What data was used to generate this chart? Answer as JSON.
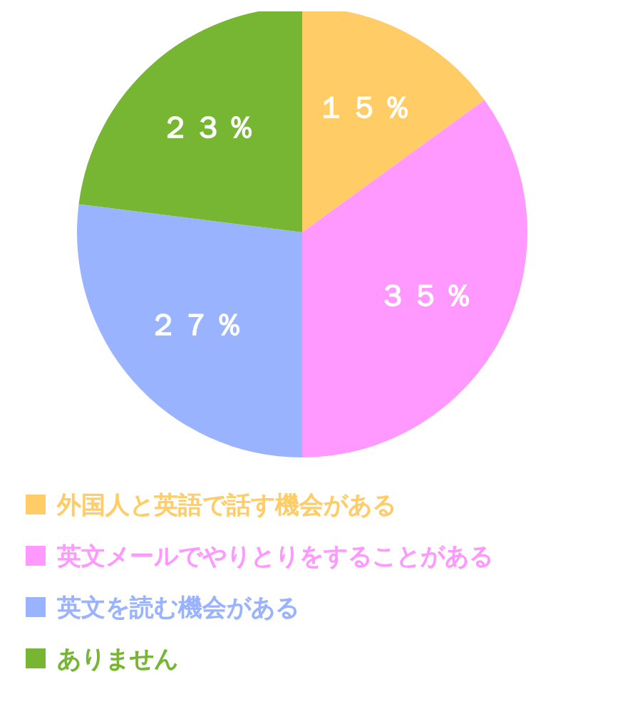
{
  "chart_data": {
    "type": "pie",
    "categories": [
      "外国人と英語で話す機会がある",
      "英文メールでやりとりをすることがある",
      "英文を読む機会がある",
      "ありません"
    ],
    "values": [
      15,
      35,
      27,
      23
    ],
    "colors": [
      "#ffcc66",
      "#ff99ff",
      "#99b3ff",
      "#77b633"
    ],
    "value_labels": [
      "１５％",
      "３５％",
      "２７％",
      "２３％"
    ],
    "legend": "bottom left"
  }
}
